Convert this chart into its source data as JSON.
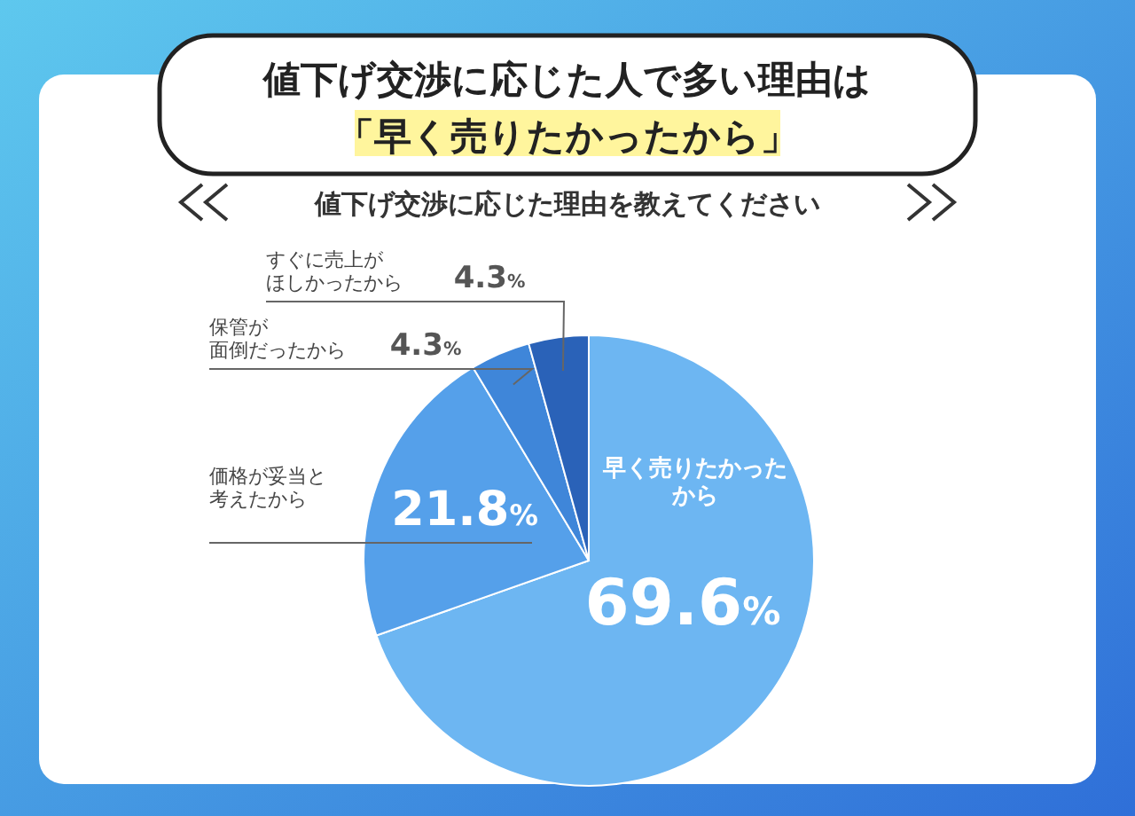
{
  "chart_data": {
    "type": "pie",
    "title": "値下げ交渉に応じた人で多い理由は「早く売りたかったから」",
    "subtitle": "値下げ交渉に応じた理由を教えてください",
    "categories": [
      "早く売りたかったから",
      "価格が妥当と考えたから",
      "保管が面倒だったから",
      "すぐに売上がほしかったから"
    ],
    "values": [
      69.6,
      21.8,
      4.3,
      4.3
    ],
    "value_labels": [
      "69.6%",
      "21.8%",
      "4.3%",
      "4.3%"
    ],
    "colors": [
      "#6db6f2",
      "#55a0ea",
      "#3f86d9",
      "#2a62b8"
    ]
  }
}
